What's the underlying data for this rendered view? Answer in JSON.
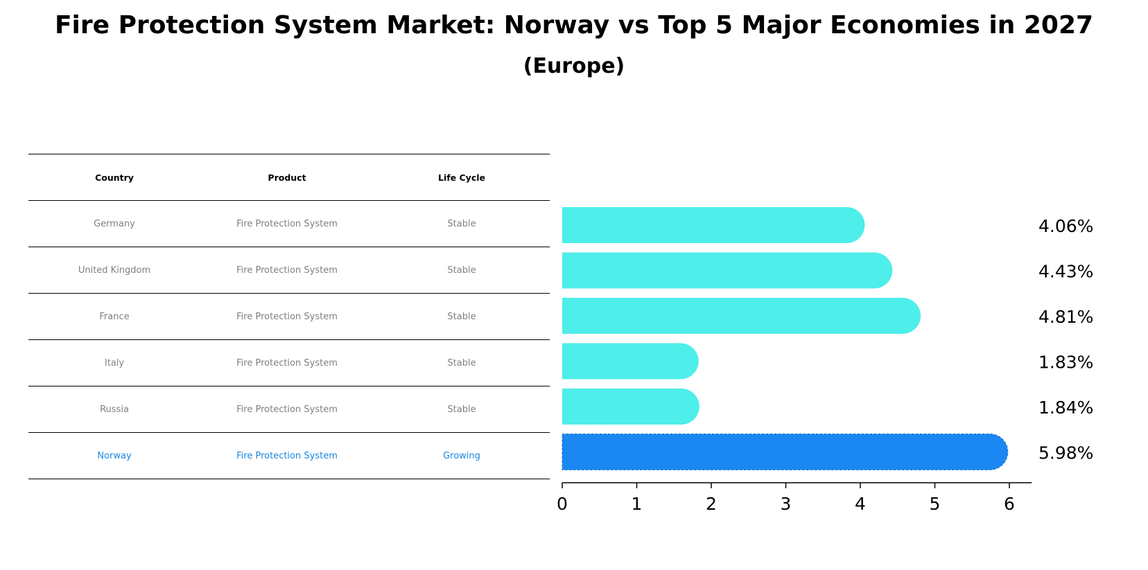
{
  "title": "Fire Protection System Market: Norway vs Top 5 Major Economies in 2027",
  "subtitle": "(Europe)",
  "table": {
    "headers": [
      "Country",
      "Product",
      "Life Cycle"
    ],
    "rows": [
      {
        "country": "Germany",
        "product": "Fire Protection System",
        "life_cycle": "Stable"
      },
      {
        "country": "United Kingdom",
        "product": "Fire Protection System",
        "life_cycle": "Stable"
      },
      {
        "country": "France",
        "product": "Fire Protection System",
        "life_cycle": "Stable"
      },
      {
        "country": "Italy",
        "product": "Fire Protection System",
        "life_cycle": "Stable"
      },
      {
        "country": "Russia",
        "product": "Fire Protection System",
        "life_cycle": "Stable"
      },
      {
        "country": "Norway",
        "product": "Fire Protection System",
        "life_cycle": "Growing"
      }
    ]
  },
  "chart_data": {
    "type": "bar",
    "orientation": "horizontal",
    "title": "Fire Protection System Market: Norway vs Top 5 Major Economies in 2027",
    "subtitle": "(Europe)",
    "categories": [
      "Germany",
      "United Kingdom",
      "France",
      "Italy",
      "Russia",
      "Norway"
    ],
    "values": [
      4.06,
      4.43,
      4.81,
      1.83,
      1.84,
      5.98
    ],
    "value_labels": [
      "4.06%",
      "4.43%",
      "4.81%",
      "1.83%",
      "1.84%",
      "5.98%"
    ],
    "highlight": "Norway",
    "xlim": [
      0,
      6.3
    ],
    "xticks": [
      0,
      1,
      2,
      3,
      4,
      5,
      6
    ],
    "xlabel": "",
    "ylabel": "",
    "grid": false
  },
  "colors": {
    "bar": "#4eeeea",
    "highlight": "#1a87f2",
    "highlight_text": "#1a87e0",
    "muted_text": "#808080"
  }
}
